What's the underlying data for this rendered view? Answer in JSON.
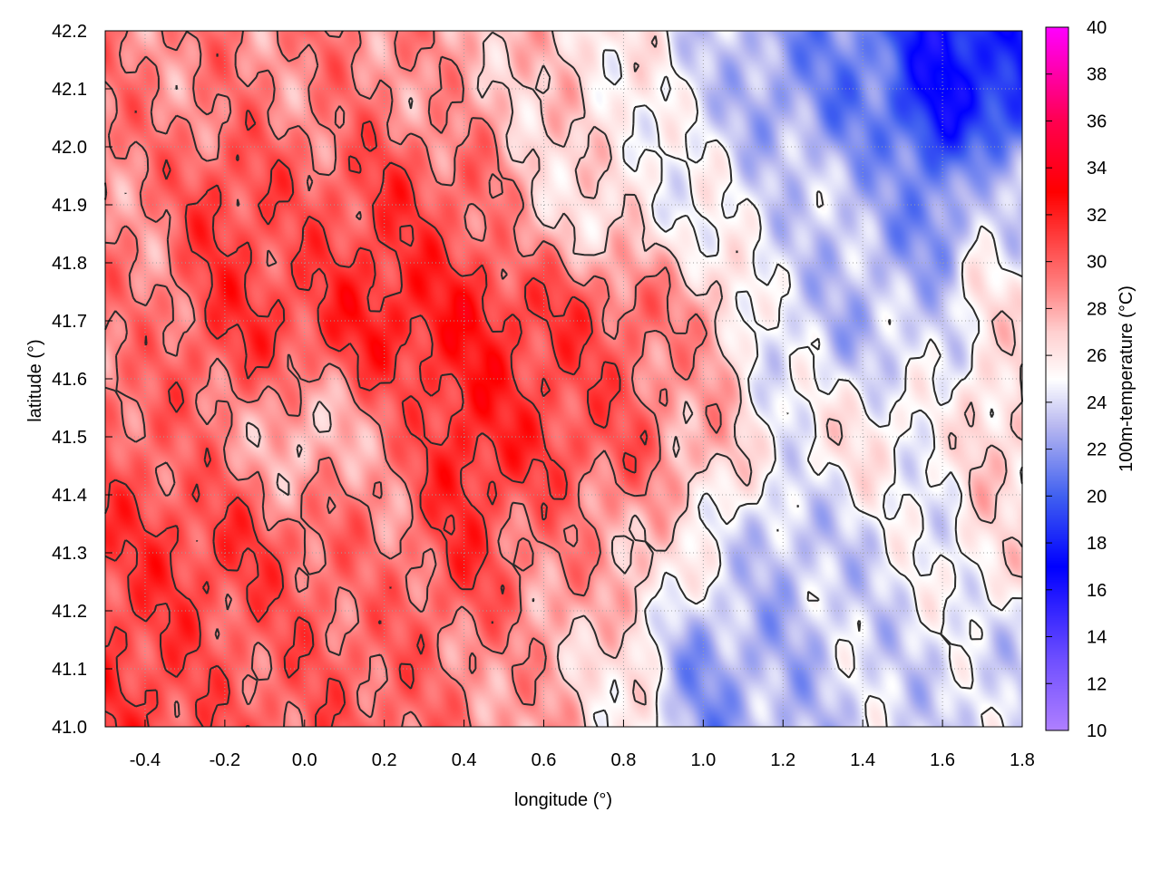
{
  "chart_data": {
    "type": "heatmap",
    "title": "",
    "xlabel": "longitude (°)",
    "ylabel": "latitude (°)",
    "colorbar_label": "100m-temperature (°C)",
    "xlim": [
      -0.5,
      1.8
    ],
    "ylim": [
      41.0,
      42.2
    ],
    "clim": [
      10,
      40
    ],
    "grid": true,
    "xticks": [
      "-0.4",
      "-0.2",
      "0.0",
      "0.2",
      "0.4",
      "0.6",
      "0.8",
      "1.0",
      "1.2",
      "1.4",
      "1.6",
      "1.8"
    ],
    "yticks": [
      "41.0",
      "41.1",
      "41.2",
      "41.3",
      "41.4",
      "41.5",
      "41.6",
      "41.7",
      "41.8",
      "41.9",
      "42.0",
      "42.1",
      "42.2"
    ],
    "cticks": [
      "10",
      "12",
      "14",
      "16",
      "18",
      "20",
      "22",
      "24",
      "26",
      "28",
      "30",
      "32",
      "34",
      "36",
      "38",
      "40"
    ],
    "colormap": [
      [
        10,
        "#b080ff"
      ],
      [
        13,
        "#7050ff"
      ],
      [
        17,
        "#0000ff"
      ],
      [
        20,
        "#4060f0"
      ],
      [
        23,
        "#b8b8f0"
      ],
      [
        25,
        "#ffffff"
      ],
      [
        27,
        "#ffd0d0"
      ],
      [
        29,
        "#ff8080"
      ],
      [
        31,
        "#ff4040"
      ],
      [
        33,
        "#ff0000"
      ],
      [
        36,
        "#ff0050"
      ],
      [
        40,
        "#ff00ff"
      ]
    ],
    "contour_levels": [
      25,
      27,
      29,
      31
    ],
    "grid_lon": [
      -0.4,
      -0.2,
      0.0,
      0.2,
      0.4,
      0.6,
      0.8,
      1.0,
      1.2,
      1.4,
      1.6,
      1.7
    ],
    "grid_lat": [
      42.1,
      41.9,
      41.7,
      41.5,
      41.3,
      41.1
    ],
    "temperature": [
      [
        29,
        29,
        29,
        29,
        28,
        27,
        26,
        24,
        22,
        21,
        17,
        18
      ],
      [
        29,
        31,
        30,
        31,
        30,
        27,
        26,
        25,
        24,
        23,
        21,
        24
      ],
      [
        29,
        31,
        31,
        32,
        32,
        31,
        30,
        28,
        24,
        23,
        24,
        26
      ],
      [
        30,
        29,
        27,
        29,
        32,
        31,
        30,
        28,
        25,
        26,
        25,
        27
      ],
      [
        31,
        31,
        30,
        29,
        31,
        29,
        28,
        25,
        23,
        24,
        25,
        26
      ],
      [
        31,
        30,
        30,
        30,
        29,
        28,
        26,
        22,
        23,
        24,
        24,
        24
      ]
    ]
  }
}
